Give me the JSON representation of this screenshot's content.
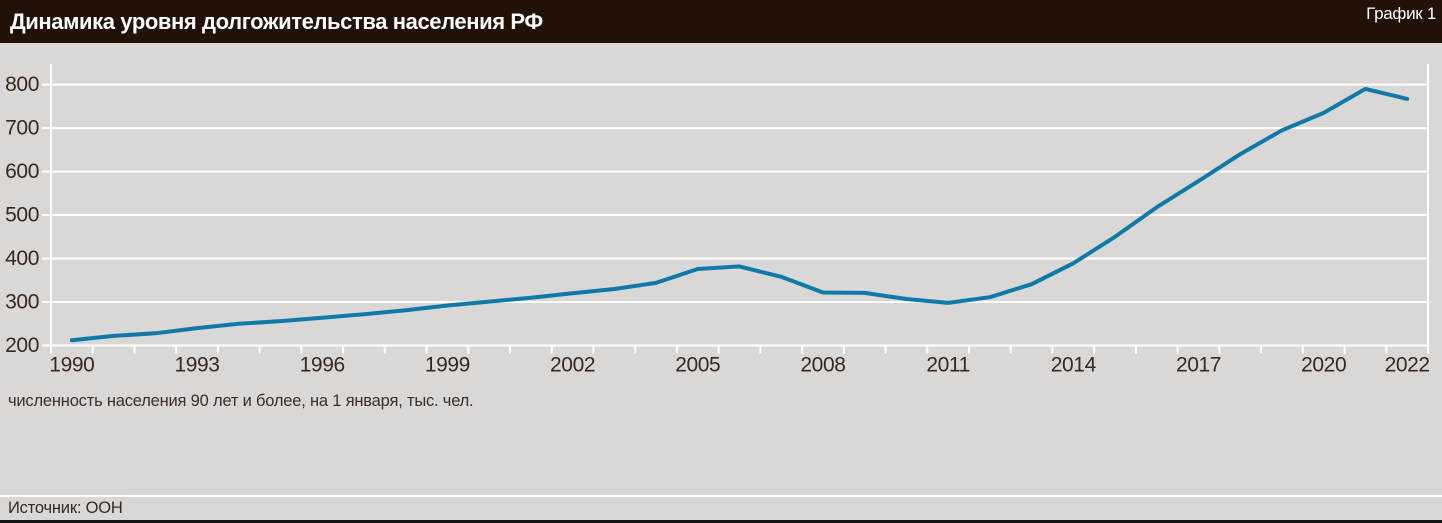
{
  "header": {
    "figure_label": "График 1"
  },
  "chart_data": {
    "type": "line",
    "title": "Динамика уровня долгожительства населения РФ",
    "caption": "численность населения 90 лет и более, на 1 января, тыс. чел.",
    "xlabel": "",
    "ylabel": "тыс. чел.",
    "x": [
      1990,
      1991,
      1992,
      1993,
      1994,
      1995,
      1996,
      1997,
      1998,
      1999,
      2000,
      2001,
      2002,
      2003,
      2004,
      2005,
      2006,
      2007,
      2008,
      2009,
      2010,
      2011,
      2012,
      2013,
      2014,
      2015,
      2016,
      2017,
      2018,
      2019,
      2020,
      2021,
      2022
    ],
    "values": [
      212,
      222,
      228,
      240,
      250,
      256,
      264,
      272,
      281,
      292,
      301,
      310,
      320,
      330,
      344,
      376,
      382,
      358,
      322,
      321,
      307,
      298,
      311,
      341,
      389,
      450,
      518,
      578,
      640,
      695,
      735,
      790,
      767
    ],
    "x_tick_labels": [
      1990,
      1993,
      1996,
      1999,
      2002,
      2005,
      2008,
      2011,
      2014,
      2017,
      2020,
      2022
    ],
    "y_ticks": [
      200,
      300,
      400,
      500,
      600,
      700,
      800
    ],
    "ylim": [
      200,
      800
    ],
    "grid": true,
    "legend_position": "none"
  },
  "footer": {
    "source": "Источник: ООН"
  },
  "colors": {
    "line": "#0f79a8",
    "header_bg": "#221106",
    "page_bg": "#d9d8d6",
    "grid": "#ffffff",
    "text": "#37291f"
  }
}
